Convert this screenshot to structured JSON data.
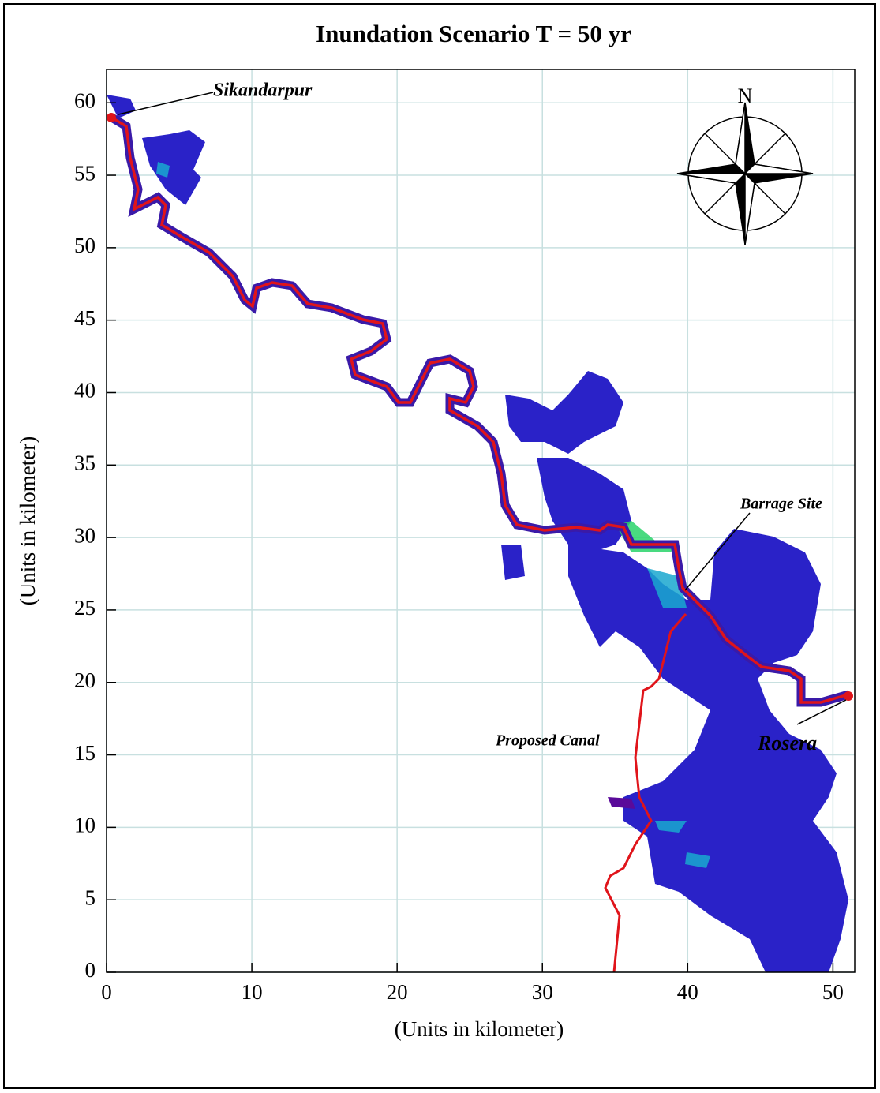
{
  "chart_data": {
    "type": "map",
    "title": "Inundation Scenario T = 50 yr",
    "x_label": "(Units in kilometer)",
    "y_label": "(Units in kilometer)",
    "xlim": [
      0,
      51.5
    ],
    "ylim": [
      0,
      62.3
    ],
    "xticks": [
      0,
      10,
      20,
      30,
      40,
      50
    ],
    "yticks": [
      0,
      5,
      10,
      15,
      20,
      25,
      30,
      35,
      40,
      45,
      50,
      55,
      60
    ],
    "grid": true,
    "north_label": "N",
    "annotations": [
      "Sikandarpur",
      "Barrage Site",
      "Proposed Canal",
      "Rosera"
    ]
  }
}
